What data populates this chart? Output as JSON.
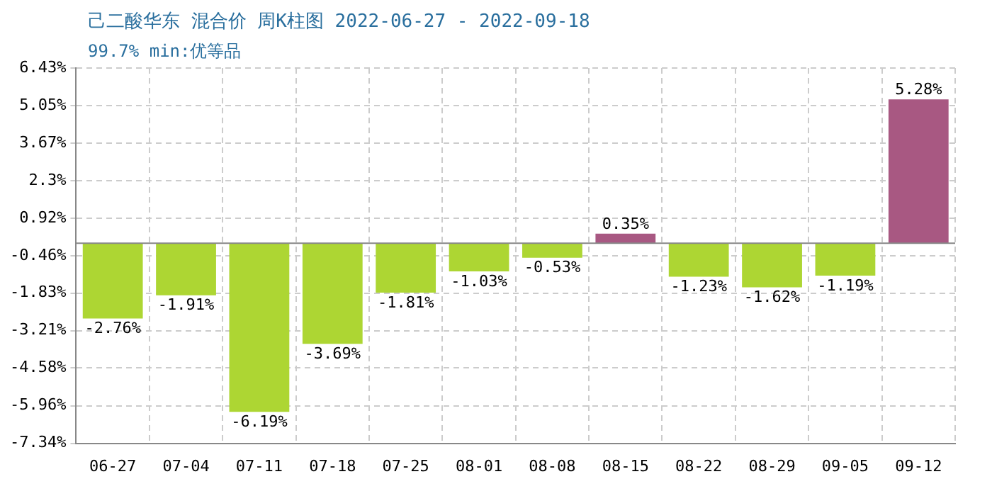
{
  "chart_data": {
    "type": "bar",
    "title": "己二酸华东 混合价 周K柱图 2022-06-27 - 2022-09-18",
    "subtitle": "99.7% min:优等品",
    "categories": [
      "06-27",
      "07-04",
      "07-11",
      "07-18",
      "07-25",
      "08-01",
      "08-08",
      "08-15",
      "08-22",
      "08-29",
      "09-05",
      "09-12"
    ],
    "values": [
      -2.76,
      -1.91,
      -6.19,
      -3.69,
      -1.81,
      -1.03,
      -0.53,
      0.35,
      -1.23,
      -1.62,
      -1.19,
      5.28
    ],
    "value_labels": [
      "-2.76%",
      "-1.91%",
      "-6.19%",
      "-3.69%",
      "-1.81%",
      "-1.03%",
      "-0.53%",
      "0.35%",
      "-1.23%",
      "-1.62%",
      "-1.19%",
      "5.28%"
    ],
    "colors": [
      "#add633",
      "#add633",
      "#add633",
      "#add633",
      "#add633",
      "#add633",
      "#add633",
      "#a85882",
      "#add633",
      "#add633",
      "#add633",
      "#a85882"
    ],
    "ylim": [
      -7.34,
      6.43
    ],
    "yticks": [
      {
        "value": 6.43,
        "label": "6.43%"
      },
      {
        "value": 5.05,
        "label": "5.05%"
      },
      {
        "value": 3.67,
        "label": "3.67%"
      },
      {
        "value": 2.3,
        "label": "2.3%"
      },
      {
        "value": 0.92,
        "label": "0.92%"
      },
      {
        "value": -0.46,
        "label": "-0.46%"
      },
      {
        "value": -1.83,
        "label": "-1.83%"
      },
      {
        "value": -3.21,
        "label": "-3.21%"
      },
      {
        "value": -4.58,
        "label": "-4.58%"
      },
      {
        "value": -5.96,
        "label": "-5.96%"
      },
      {
        "value": -7.34,
        "label": "-7.34%"
      }
    ],
    "grid": true
  }
}
